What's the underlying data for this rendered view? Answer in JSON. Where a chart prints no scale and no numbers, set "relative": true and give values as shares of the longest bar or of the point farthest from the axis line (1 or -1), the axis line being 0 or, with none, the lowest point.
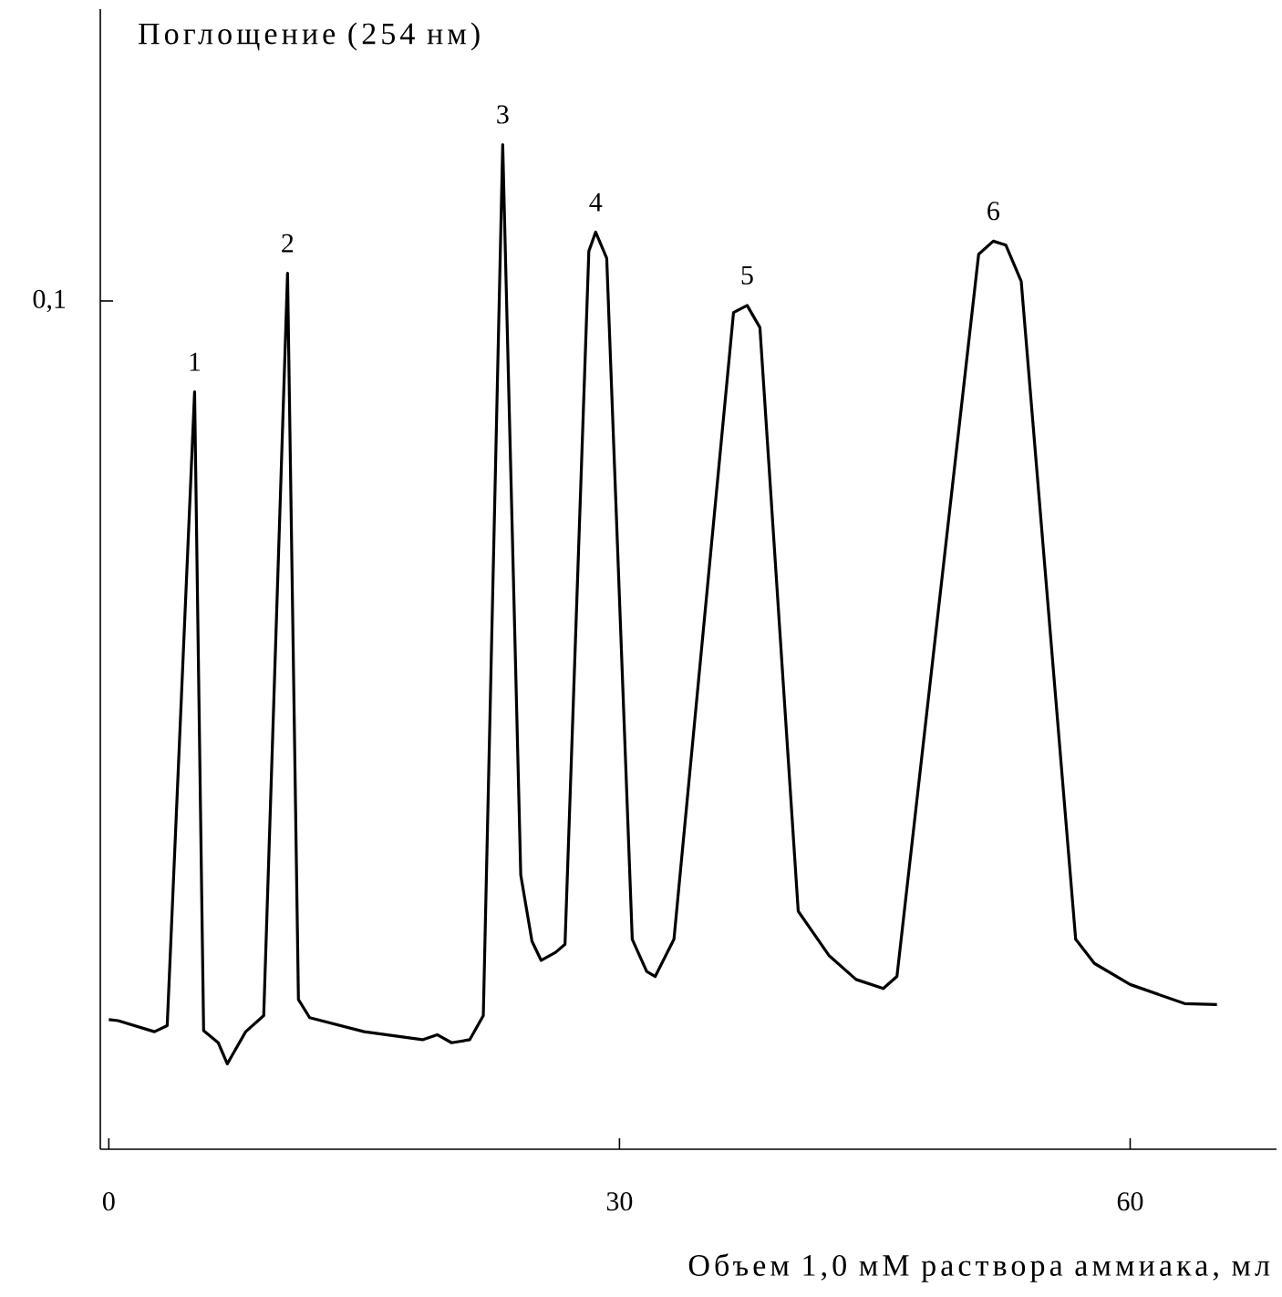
{
  "chart_data": {
    "type": "line",
    "ylabel": "Поглощение (254 нм)",
    "xlabel": "Объем 1,0 мМ раствора аммиака, мл",
    "xlim": [
      -0.5,
      68.6
    ],
    "relative": true,
    "xticks": [
      0,
      30,
      60
    ],
    "color": "#000000",
    "x": [
      0,
      0.54,
      2.68,
      3.43,
      5.04,
      5.57,
      6.43,
      6.96,
      8.04,
      9.1,
      10.5,
      11.14,
      11.8,
      15.0,
      18.43,
      19.29,
      20.14,
      21.2,
      22.0,
      23.14,
      24.2,
      24.86,
      25.4,
      26.25,
      26.8,
      28.2,
      28.6,
      29.25,
      30.75,
      31.6,
      32.1,
      33.2,
      36.7,
      37.5,
      38.25,
      40.5,
      42.3,
      43.9,
      45.5,
      46.3,
      51.1,
      51.96,
      52.7,
      53.6,
      56.8,
      57.9,
      60,
      63.2,
      65.1
    ],
    "values": [
      0.129,
      0.128,
      0.117,
      0.123,
      0.754,
      0.118,
      0.106,
      0.085,
      0.117,
      0.133,
      0.872,
      0.149,
      0.131,
      0.117,
      0.109,
      0.114,
      0.106,
      0.109,
      0.133,
      1,
      0.273,
      0.207,
      0.188,
      0.196,
      0.204,
      0.894,
      0.913,
      0.887,
      0.209,
      0.177,
      0.172,
      0.209,
      0.833,
      0.84,
      0.818,
      0.237,
      0.193,
      0.169,
      0.16,
      0.172,
      0.891,
      0.904,
      0.9,
      0.864,
      0.209,
      0.185,
      0.164,
      0.145,
      0.144
    ],
    "annotations": [
      "0,1",
      {
        "text": "1",
        "x": 5.04,
        "y": 0.754
      },
      {
        "text": "2",
        "x": 10.5,
        "y": 0.872
      },
      {
        "text": "3",
        "x": 23.14,
        "y": 1
      },
      {
        "text": "4",
        "x": 28.6,
        "y": 0.913
      },
      {
        "text": "5",
        "x": 37.5,
        "y": 0.84
      },
      {
        "text": "6",
        "x": 51.96,
        "y": 0.904
      }
    ]
  }
}
